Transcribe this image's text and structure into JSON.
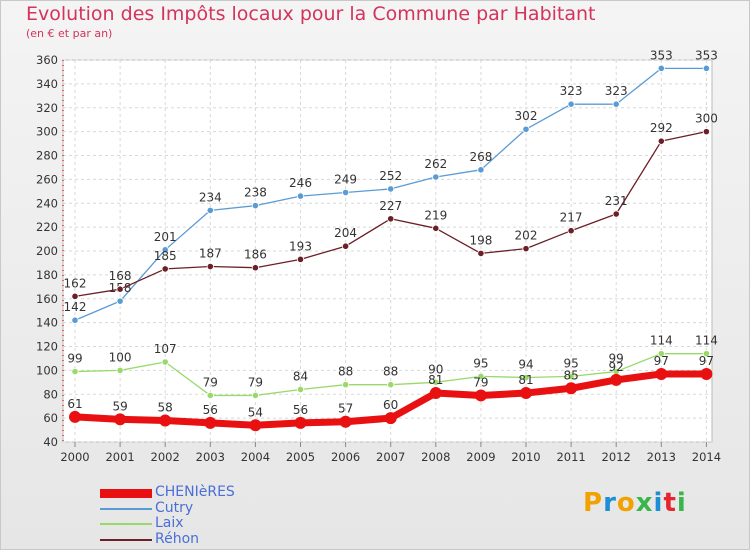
{
  "title": "Evolution des Impôts locaux pour la Commune par Habitant",
  "subtitle": "(en € et par an)",
  "logo": {
    "letters": [
      {
        "ch": "P",
        "color": "#f2a200"
      },
      {
        "ch": "r",
        "color": "#1c8fd6"
      },
      {
        "ch": "o",
        "color": "#f2a200"
      },
      {
        "ch": "x",
        "color": "#39b54a"
      },
      {
        "ch": "i",
        "color": "#1c8fd6"
      },
      {
        "ch": "t",
        "color": "#e6262e"
      },
      {
        "ch": "i",
        "color": "#39b54a"
      }
    ]
  },
  "chart_data": {
    "type": "line",
    "title": "Evolution des Impôts locaux pour la Commune par Habitant",
    "ylim": [
      40,
      360
    ],
    "yticks": [
      40,
      60,
      80,
      100,
      120,
      140,
      160,
      180,
      200,
      220,
      240,
      260,
      280,
      300,
      320,
      340,
      360
    ],
    "grid": true,
    "legend_position": "bottom-left",
    "x": [
      "2000",
      "2001",
      "2002",
      "2003",
      "2004",
      "2005",
      "2006",
      "2007",
      "2008",
      "2009",
      "2010",
      "2011",
      "2012",
      "2013",
      "2014"
    ],
    "series": [
      {
        "name": "CHENIèRES",
        "color": "#e81010",
        "values": [
          61,
          59,
          58,
          56,
          54,
          56,
          57,
          60,
          81,
          79,
          81,
          85,
          92,
          97,
          97
        ]
      },
      {
        "name": "Cutry",
        "color": "#5b9bd5",
        "values": [
          142,
          158,
          201,
          234,
          238,
          246,
          249,
          252,
          262,
          268,
          302,
          323,
          323,
          353,
          353
        ]
      },
      {
        "name": "Laix",
        "color": "#99d96a",
        "values": [
          99,
          100,
          107,
          79,
          79,
          84,
          88,
          88,
          90,
          95,
          94,
          95,
          99,
          114,
          114
        ]
      },
      {
        "name": "Réhon",
        "color": "#6b1f26",
        "values": [
          162,
          168,
          185,
          187,
          186,
          193,
          204,
          227,
          219,
          198,
          202,
          217,
          231,
          292,
          300
        ]
      }
    ]
  }
}
